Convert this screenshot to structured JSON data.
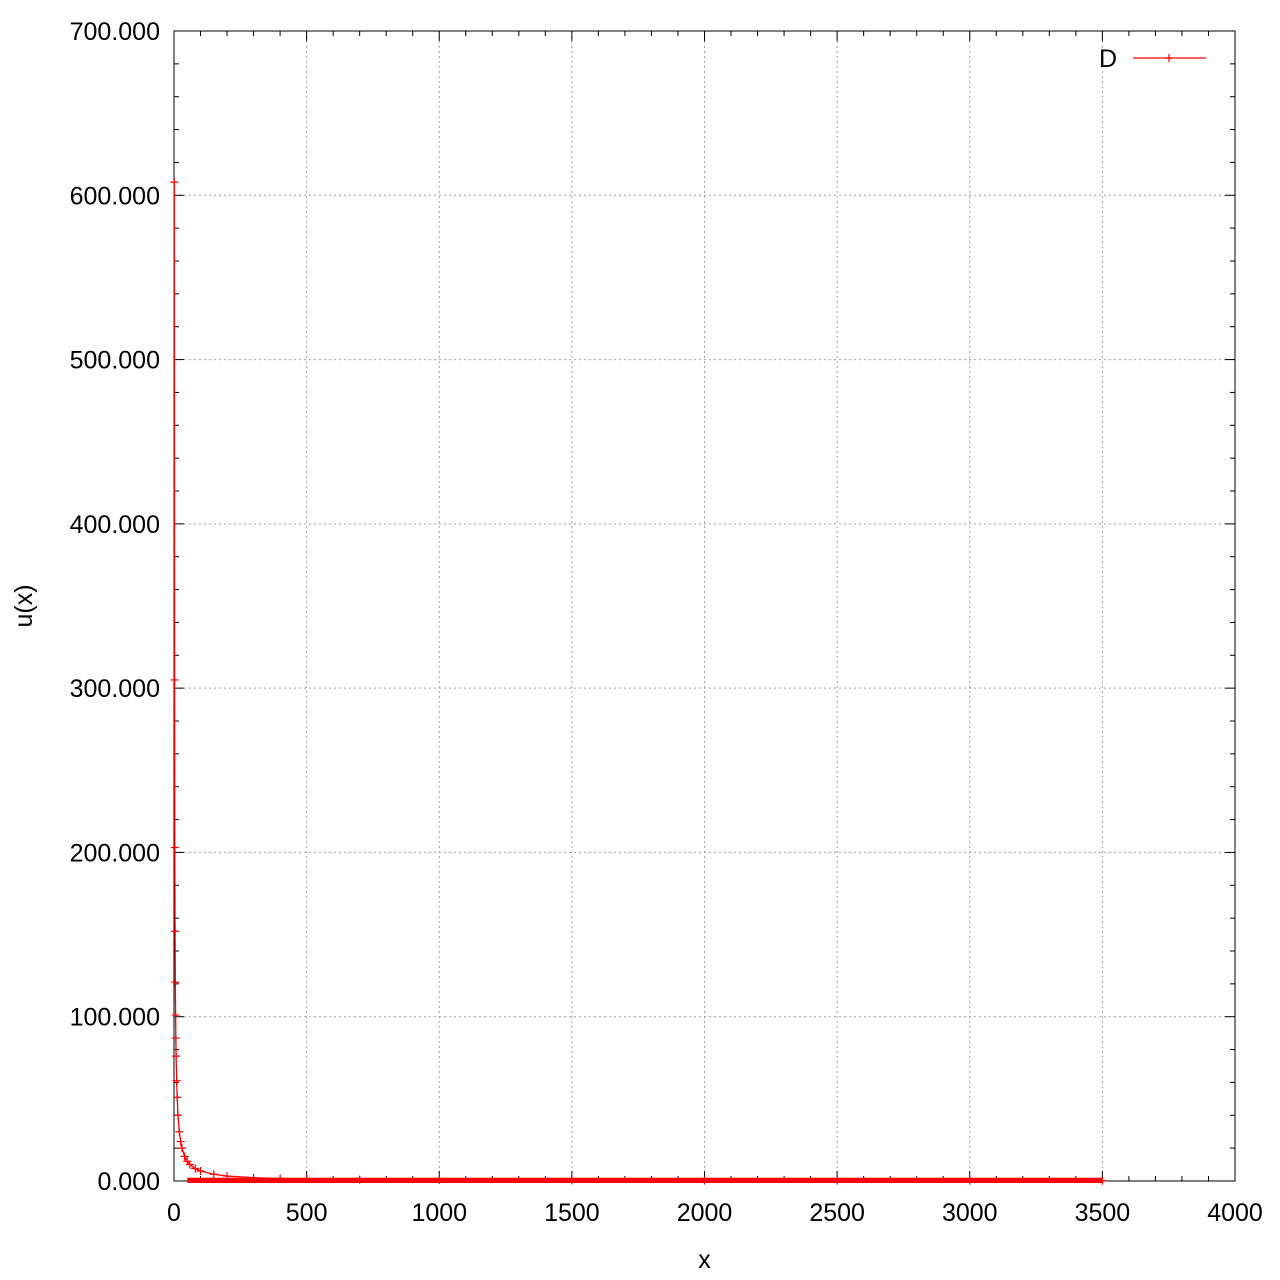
{
  "chart_data": {
    "type": "line",
    "title": "",
    "xlabel": "x",
    "ylabel": "u(x)",
    "xlim": [
      0,
      4000
    ],
    "ylim": [
      0,
      700
    ],
    "x_ticks": [
      0,
      500,
      1000,
      1500,
      2000,
      2500,
      3000,
      3500,
      4000
    ],
    "x_tick_labels": [
      "0",
      "500",
      "1000",
      "1500",
      "2000",
      "2500",
      "3000",
      "3500",
      "4000"
    ],
    "y_ticks": [
      0,
      100,
      200,
      300,
      400,
      500,
      600,
      700
    ],
    "y_tick_labels": [
      "0.000",
      "100.000",
      "200.000",
      "300.000",
      "400.000",
      "500.000",
      "600.000",
      "700.000"
    ],
    "grid": true,
    "legend_position": "top-right",
    "colors": {
      "series": "#ff0000",
      "grid": "#a0a0a0",
      "axis": "#000000"
    },
    "series": [
      {
        "name": "D",
        "marker": "plus",
        "x": [
          1,
          2,
          3,
          4,
          5,
          6,
          7,
          8,
          10,
          12,
          15,
          20,
          25,
          30,
          40,
          50,
          60,
          80,
          100,
          150,
          200,
          300,
          400,
          500,
          700,
          1000,
          1500,
          2000,
          2500,
          3000,
          3500
        ],
        "y": [
          608,
          305,
          203,
          152,
          121,
          101,
          87,
          76,
          61,
          51,
          40,
          30,
          24,
          20,
          15,
          12,
          10,
          7.6,
          6.1,
          4.1,
          3.0,
          2.0,
          1.5,
          1.2,
          0.87,
          0.61,
          0.41,
          0.3,
          0.24,
          0.2,
          0.17
        ]
      }
    ]
  }
}
